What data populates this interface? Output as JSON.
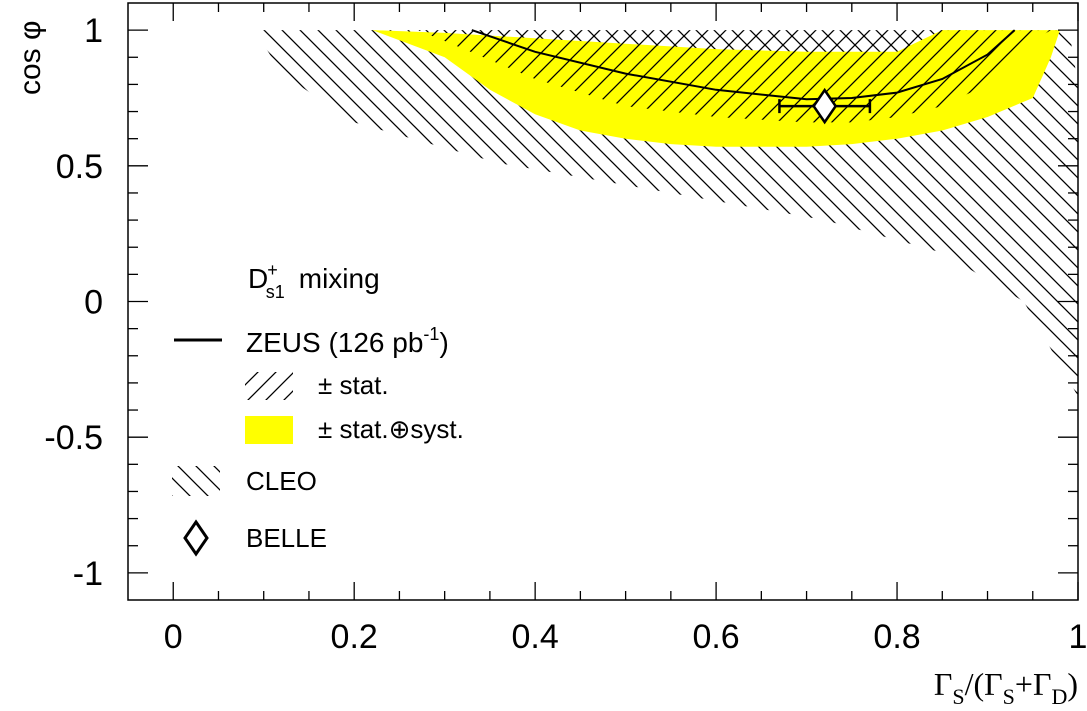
{
  "chart_data": {
    "type": "line",
    "xlim": [
      -0.05,
      1.0
    ],
    "ylim": [
      -1.1,
      1.1
    ],
    "x_ticks": [
      "0",
      "0.2",
      "0.4",
      "0.6",
      "0.8",
      "1"
    ],
    "y_ticks": [
      "1",
      "0.5",
      "0",
      "-0.5",
      "-1"
    ],
    "xlabel": "Γ_S/(Γ_S+Γ_D)",
    "ylabel": "cos φ",
    "legend": {
      "title": "D_s1^+ mixing",
      "placement": "middle-left",
      "entries": {
        "zeus": "ZEUS (126 pb",
        "zeus_exp": "-1",
        "zeus_close": ")",
        "stat": "± stat.",
        "statsyst": "± stat.⊕syst.",
        "cleo": "CLEO",
        "belle": "BELLE"
      }
    },
    "colors": {
      "band": "#ffff00",
      "line": "#000000",
      "hatch": "#000000"
    },
    "zeus_curve": {
      "x": [
        0.33,
        0.4,
        0.5,
        0.6,
        0.7,
        0.75,
        0.8,
        0.85,
        0.9,
        0.93
      ],
      "y": [
        1.0,
        0.92,
        0.84,
        0.78,
        0.745,
        0.75,
        0.77,
        0.82,
        0.91,
        1.0
      ]
    },
    "zeus_stat_band": {
      "upper_x": [
        0.27,
        0.93,
        0.93
      ],
      "upper_y": [
        1.0,
        1.0,
        1.0
      ],
      "lower_x": [
        0.97,
        0.93,
        0.9,
        0.85,
        0.8,
        0.75,
        0.7,
        0.6,
        0.5,
        0.4,
        0.3,
        0.27
      ],
      "lower_y": [
        1.0,
        0.92,
        0.8,
        0.72,
        0.68,
        0.66,
        0.66,
        0.68,
        0.72,
        0.82,
        0.96,
        1.0
      ]
    },
    "zeus_total_band": {
      "upper_x": [
        0.22,
        0.3,
        0.4,
        0.5,
        0.6,
        0.7,
        0.8,
        0.85,
        0.98
      ],
      "upper_y": [
        1.0,
        0.99,
        0.97,
        0.95,
        0.93,
        0.92,
        0.92,
        1.0,
        1.0
      ],
      "lower_x": [
        0.97,
        0.95,
        0.9,
        0.85,
        0.8,
        0.75,
        0.7,
        0.6,
        0.55,
        0.5,
        0.45,
        0.4,
        0.35,
        0.3,
        0.22
      ],
      "lower_y": [
        0.9,
        0.75,
        0.68,
        0.63,
        0.6,
        0.58,
        0.57,
        0.57,
        0.58,
        0.6,
        0.63,
        0.69,
        0.78,
        0.9,
        1.0
      ]
    },
    "cleo_region": {
      "x": [
        0.09,
        0.99,
        1.0,
        1.0,
        0.94,
        0.85,
        0.72,
        0.55,
        0.36,
        0.2,
        0.12
      ],
      "y": [
        1.0,
        1.0,
        0.8,
        -0.35,
        0.0,
        0.18,
        0.3,
        0.4,
        0.51,
        0.66,
        0.84
      ]
    },
    "belle": {
      "x": 0.72,
      "y": 0.72,
      "x_err_low": 0.05,
      "x_err_high": 0.05
    }
  }
}
